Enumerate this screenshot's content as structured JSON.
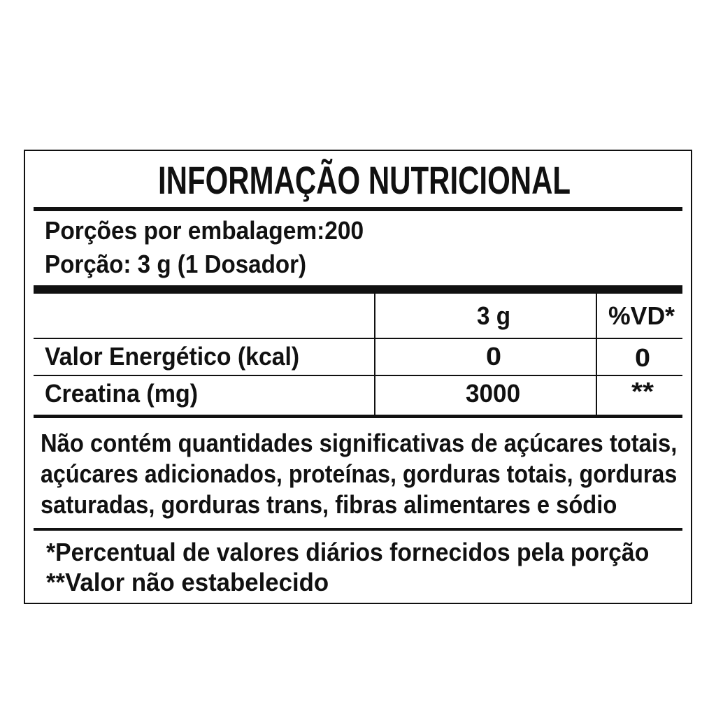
{
  "title": "INFORMAÇÃO NUTRICIONAL",
  "servings": {
    "per_package": "Porções por embalagem:200",
    "portion": "Porção: 3 g (1 Dosador)"
  },
  "table": {
    "headers": [
      "",
      "3 g",
      "%VD*"
    ],
    "rows": [
      {
        "name": "Valor Energético (kcal)",
        "amount": "0",
        "dv": "0"
      },
      {
        "name": "Creatina (mg)",
        "amount": "3000",
        "dv": "**"
      }
    ]
  },
  "note_lines": [
    "Não contém quantidades significativas de açúcares totais,",
    "açúcares adicionados, proteínas, gorduras totais, gorduras",
    "saturadas, gorduras trans, fibras alimentares e sódio"
  ],
  "footnotes": [
    "*Percentual de valores diários fornecidos pela porção",
    "**Valor não estabelecido"
  ]
}
